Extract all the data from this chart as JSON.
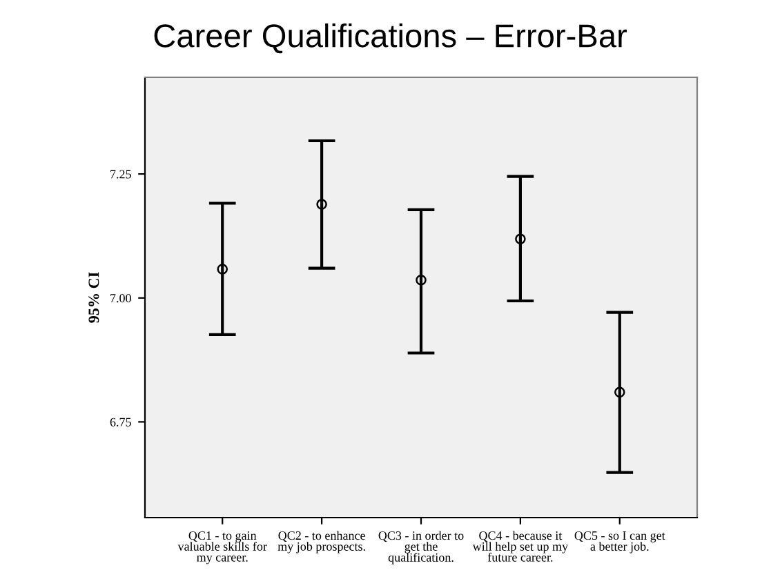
{
  "chart_data": {
    "type": "scatter",
    "title": "Career Qualifications – Error-Bar",
    "ylabel": "95% CI",
    "categories": [
      "QC1 - to gain\nvaluable skills for\nmy career.",
      "QC2 - to enhance\nmy job prospects.",
      "QC3 - in order to\nget the\nqualification.",
      "QC4 - because it\nwill help set up my\nfuture career.",
      "QC5 - so I can get\na better job."
    ],
    "series": [
      {
        "color": "#000000",
        "values": [
          7.058,
          7.189,
          7.036,
          7.119,
          6.81
        ],
        "errors": [
          [
            6.926,
            7.191
          ],
          [
            7.06,
            7.317
          ],
          [
            6.889,
            7.178
          ],
          [
            6.994,
            7.245
          ],
          [
            6.648,
            6.971
          ]
        ]
      }
    ],
    "ylim": [
      6.557,
      7.445
    ],
    "yticks": [
      {
        "value": 6.75,
        "label": "6.75"
      },
      {
        "value": 7.0,
        "label": "7.00"
      },
      {
        "value": 7.25,
        "label": "7.25"
      }
    ],
    "marker": "circle",
    "grid": false,
    "legend": false
  }
}
